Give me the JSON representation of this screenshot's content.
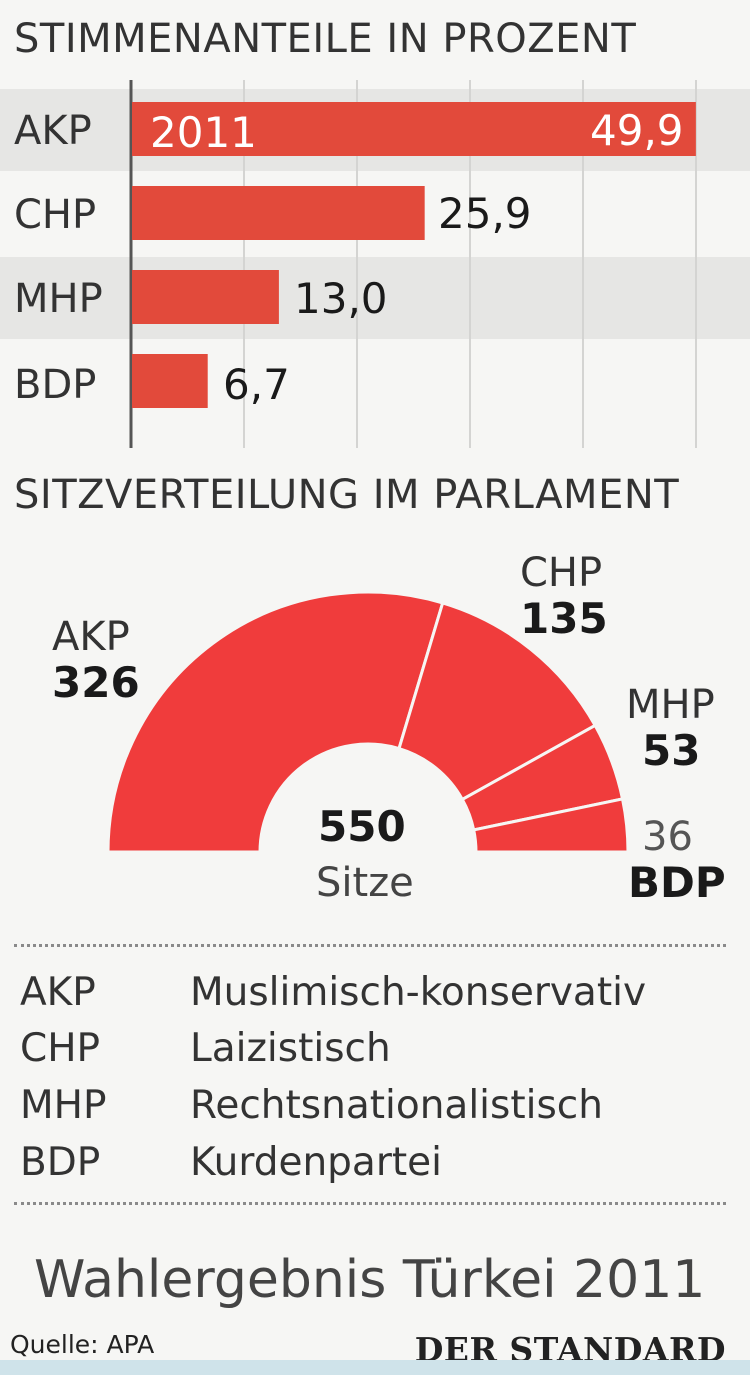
{
  "colors": {
    "bar": "#e24a3b",
    "seat": "#f03c3c",
    "stripe": "#e6e6e4",
    "background": "#f6f6f4"
  },
  "vote_section": {
    "heading": "STIMMENANTEILE IN PROZENT",
    "year_label": "2011"
  },
  "seat_section": {
    "heading": "SITZVERTEILUNG IM PARLAMENT",
    "total": "550",
    "total_label": "Sitze"
  },
  "legend": [
    {
      "code": "AKP",
      "desc": "Muslimisch-konservativ"
    },
    {
      "code": "CHP",
      "desc": "Laizistisch"
    },
    {
      "code": "MHP",
      "desc": "Rechtsnationalistisch"
    },
    {
      "code": "BDP",
      "desc": "Kurdenpartei"
    }
  ],
  "footer": {
    "title": "Wahlergebnis Türkei 2011",
    "source": "Quelle: APA",
    "brand": "DER STANDARD"
  },
  "chart_data": [
    {
      "type": "bar",
      "title": "STIMMENANTEILE IN PROZENT",
      "orientation": "horizontal",
      "categories": [
        "AKP",
        "CHP",
        "MHP",
        "BDP"
      ],
      "values": [
        49.9,
        25.9,
        13.0,
        6.7
      ],
      "value_labels": [
        "49,9",
        "25,9",
        "13,0",
        "6,7"
      ],
      "xlim": [
        0,
        50
      ],
      "grid": true
    },
    {
      "type": "pie",
      "subtype": "semicircle",
      "title": "SITZVERTEILUNG IM PARLAMENT",
      "categories": [
        "AKP",
        "CHP",
        "MHP",
        "BDP"
      ],
      "values": [
        326,
        135,
        53,
        36
      ],
      "total": 550,
      "total_label": "Sitze"
    }
  ]
}
